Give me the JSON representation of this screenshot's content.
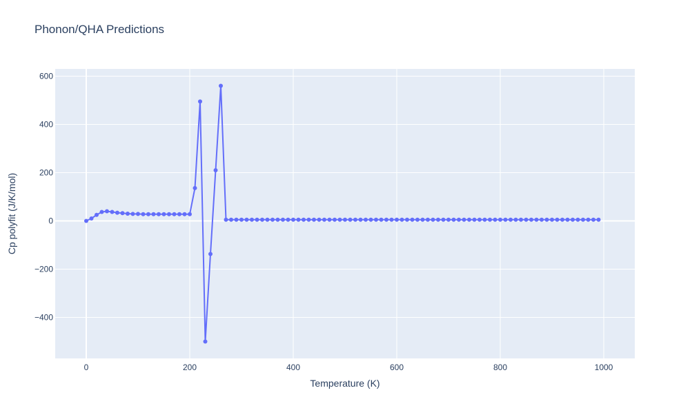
{
  "chart_data": {
    "type": "line",
    "title": "Phonon/QHA Predictions",
    "xlabel": "Temperature (K)",
    "ylabel": "Cp polyfit (J/K/mol)",
    "xlim": [
      -60,
      1060
    ],
    "ylim": [
      -570,
      630
    ],
    "x_ticks": [
      0,
      200,
      400,
      600,
      800,
      1000
    ],
    "x_tick_labels": [
      "0",
      "200",
      "400",
      "600",
      "800",
      "1000"
    ],
    "y_ticks": [
      -400,
      -200,
      0,
      200,
      400,
      600
    ],
    "y_tick_labels": [
      "−400",
      "−200",
      "0",
      "200",
      "400",
      "600"
    ],
    "grid": true,
    "legend": "none",
    "colors": {
      "series": "#636efa",
      "plot_bg": "#e5ecf6",
      "grid": "#ffffff",
      "text": "#2a3f5f"
    },
    "series": [
      {
        "mode": "lines+markers",
        "x": [
          0,
          10,
          20,
          30,
          40,
          50,
          60,
          70,
          80,
          90,
          100,
          110,
          120,
          130,
          140,
          150,
          160,
          170,
          180,
          190,
          200,
          210,
          220,
          230,
          240,
          250,
          260,
          270,
          280,
          290,
          300,
          310,
          320,
          330,
          340,
          350,
          360,
          370,
          380,
          390,
          400,
          410,
          420,
          430,
          440,
          450,
          460,
          470,
          480,
          490,
          500,
          510,
          520,
          530,
          540,
          550,
          560,
          570,
          580,
          590,
          600,
          610,
          620,
          630,
          640,
          650,
          660,
          670,
          680,
          690,
          700,
          710,
          720,
          730,
          740,
          750,
          760,
          770,
          780,
          790,
          800,
          810,
          820,
          830,
          840,
          850,
          860,
          870,
          880,
          890,
          900,
          910,
          920,
          930,
          940,
          950,
          960,
          970,
          980,
          990
        ],
        "y": [
          0,
          10,
          25,
          37,
          40,
          37,
          34,
          32,
          30,
          29,
          29,
          28,
          28,
          28,
          28,
          28,
          28,
          28,
          28,
          28,
          28,
          136,
          495,
          -500,
          -137,
          210,
          560,
          5,
          5,
          5,
          5,
          5,
          5,
          5,
          5,
          5,
          5,
          5,
          5,
          5,
          5,
          5,
          5,
          5,
          5,
          5,
          5,
          5,
          5,
          5,
          5,
          5,
          5,
          5,
          5,
          5,
          5,
          5,
          5,
          5,
          5,
          5,
          5,
          5,
          5,
          5,
          5,
          5,
          5,
          5,
          5,
          5,
          5,
          5,
          5,
          5,
          5,
          5,
          5,
          5,
          5,
          5,
          5,
          5,
          5,
          5,
          5,
          5,
          5,
          5,
          5,
          5,
          5,
          5,
          5,
          5,
          5,
          5,
          5,
          5
        ]
      }
    ]
  }
}
